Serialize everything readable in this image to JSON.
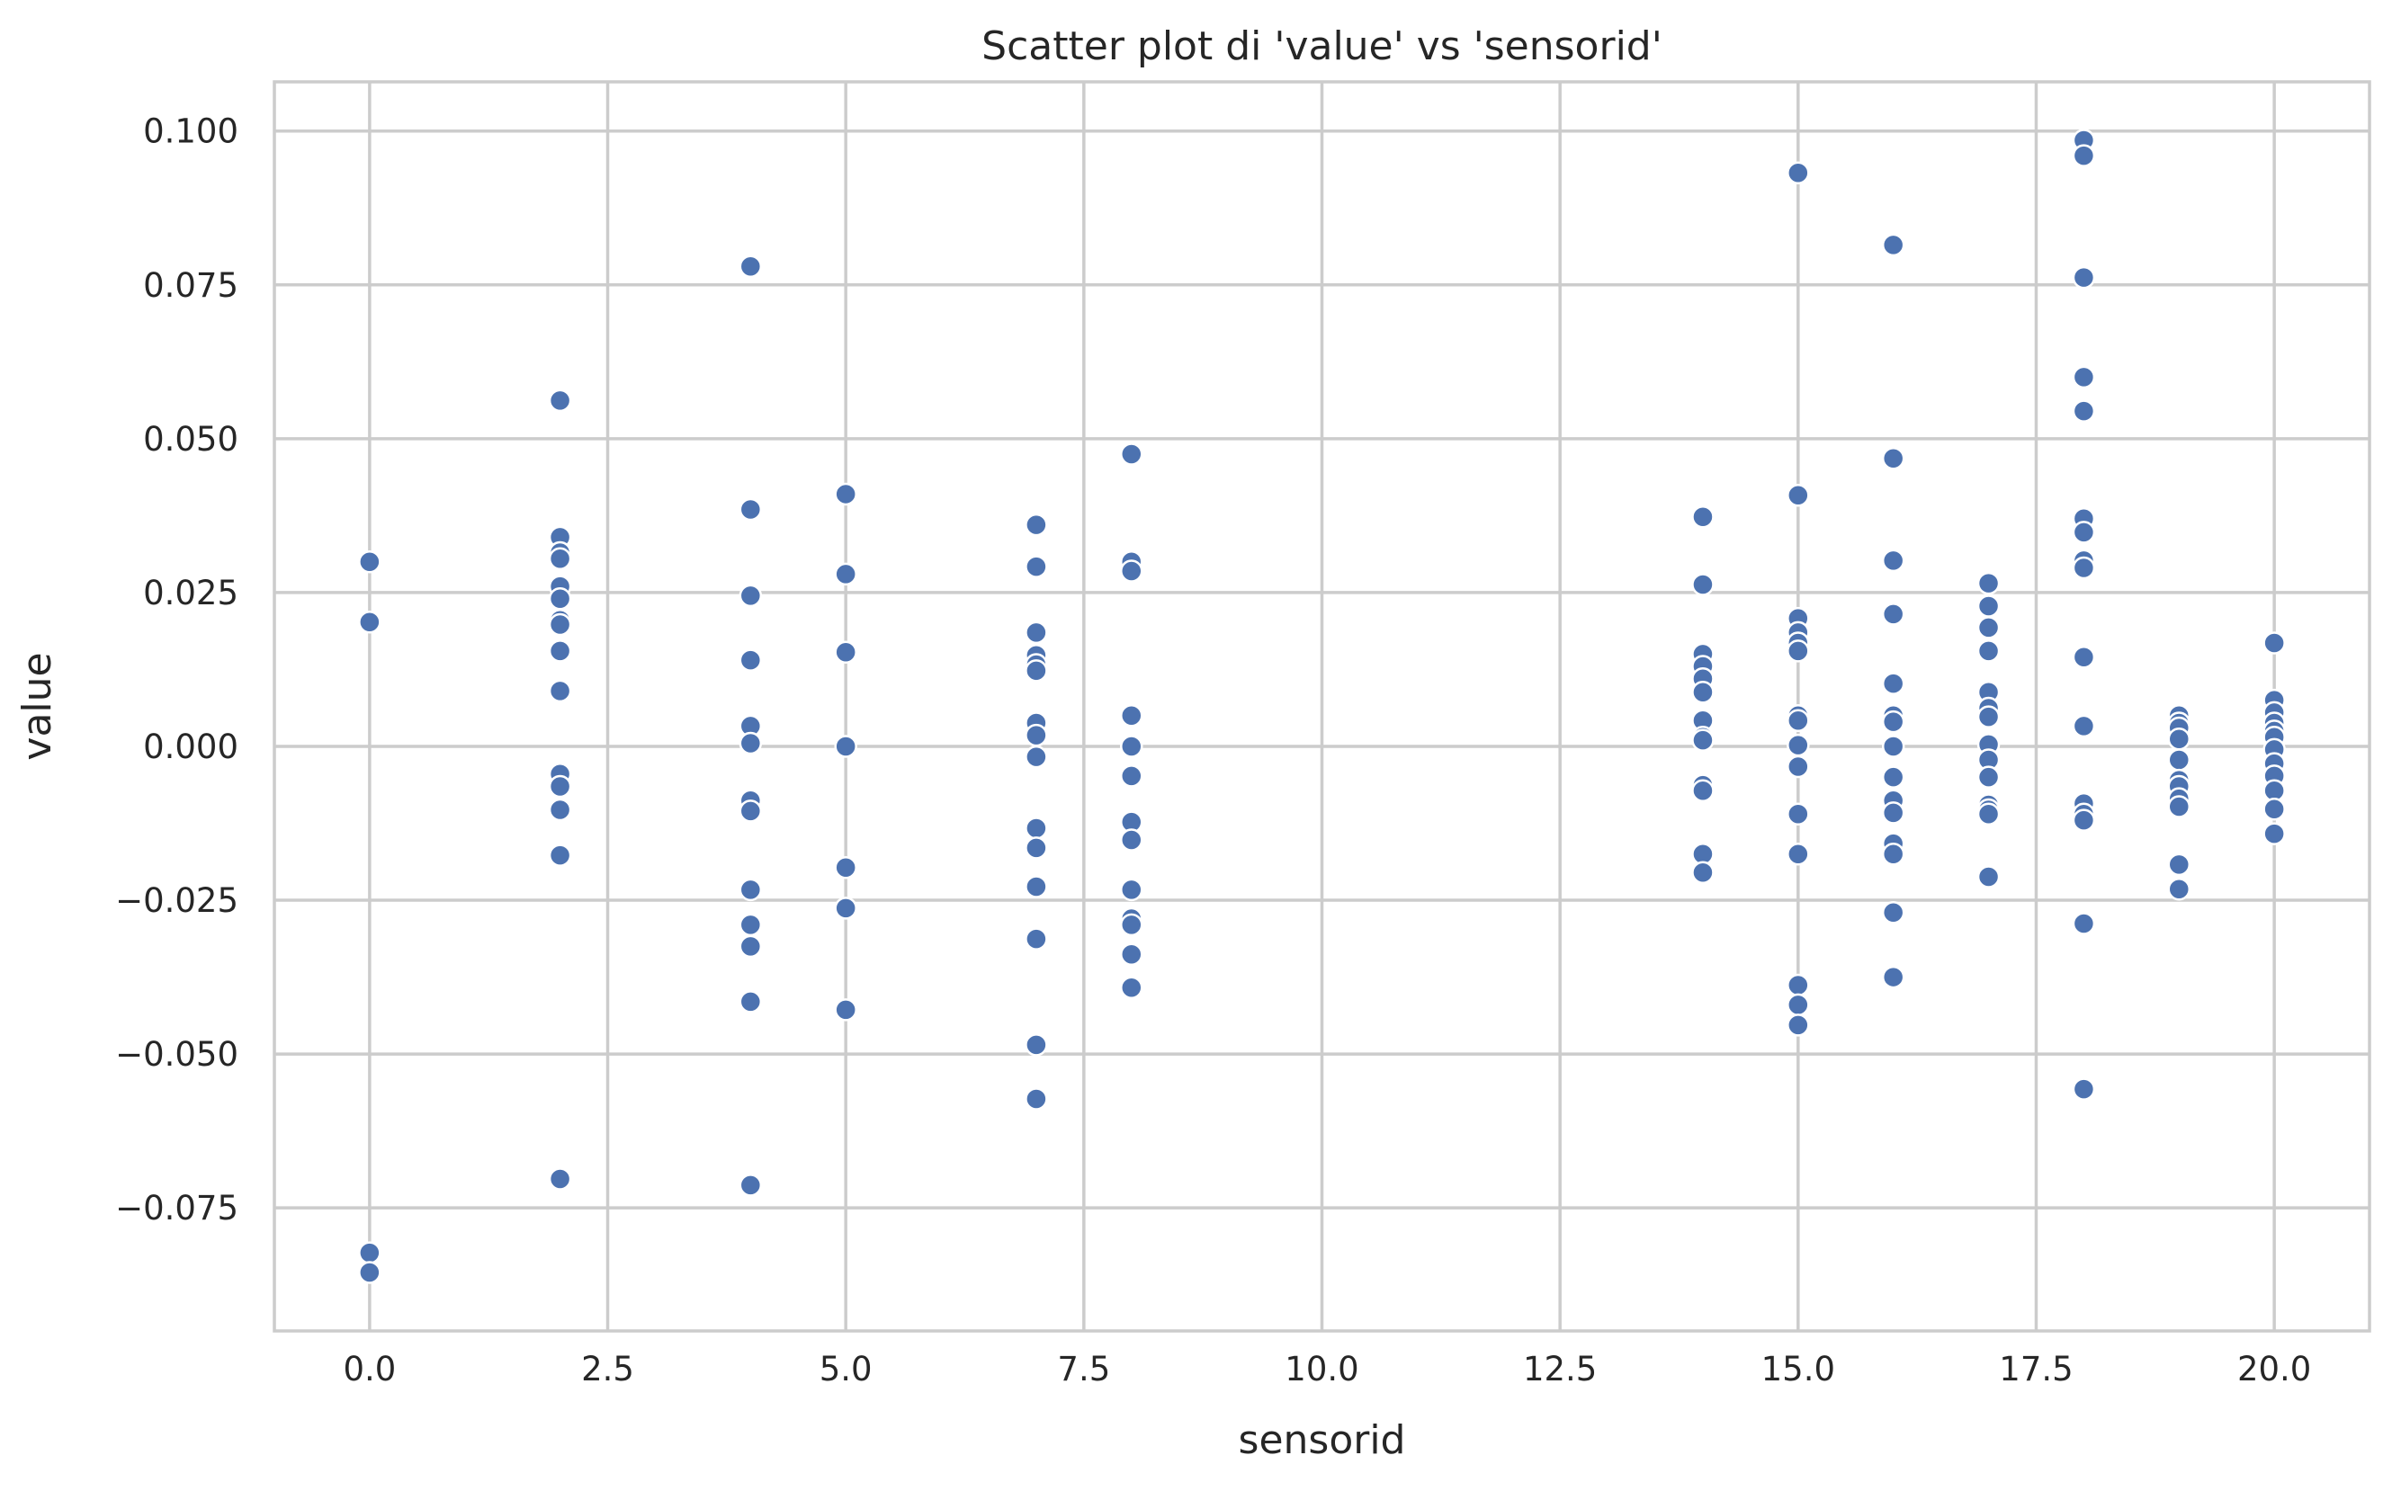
{
  "chart_data": {
    "type": "scatter",
    "title": "Scatter plot di 'value' vs 'sensorid'",
    "xlabel": "sensorid",
    "ylabel": "value",
    "xlim": [
      -1.0,
      21.0
    ],
    "ylim": [
      -0.095,
      0.108
    ],
    "xticks": [
      0.0,
      2.5,
      5.0,
      7.5,
      10.0,
      12.5,
      15.0,
      17.5,
      20.0
    ],
    "xtick_labels": [
      "0.0",
      "2.5",
      "5.0",
      "7.5",
      "10.0",
      "12.5",
      "15.0",
      "17.5",
      "20.0"
    ],
    "yticks": [
      -0.075,
      -0.05,
      -0.025,
      0.0,
      0.025,
      0.05,
      0.075,
      0.1
    ],
    "ytick_labels": [
      "−0.075",
      "−0.050",
      "−0.025",
      "0.000",
      "0.025",
      "0.050",
      "0.075",
      "0.100"
    ],
    "grid": true,
    "point_color": "#4c72b0",
    "series": [
      {
        "points": [
          [
            0,
            0.03
          ],
          [
            0,
            0.0202
          ],
          [
            0,
            -0.0823
          ],
          [
            0,
            -0.0855
          ],
          [
            2,
            0.0562
          ],
          [
            2,
            0.034
          ],
          [
            2,
            0.0315
          ],
          [
            2,
            0.0305
          ],
          [
            2,
            0.026
          ],
          [
            2,
            0.024
          ],
          [
            2,
            0.0205
          ],
          [
            2,
            0.0198
          ],
          [
            2,
            0.0155
          ],
          [
            2,
            0.009
          ],
          [
            2,
            -0.0045
          ],
          [
            2,
            -0.0065
          ],
          [
            2,
            -0.0103
          ],
          [
            2,
            -0.0177
          ],
          [
            2,
            -0.0703
          ],
          [
            4,
            0.078
          ],
          [
            4,
            0.0385
          ],
          [
            4,
            0.0245
          ],
          [
            4,
            0.014
          ],
          [
            4,
            0.0033
          ],
          [
            4,
            0.0005
          ],
          [
            4,
            -0.0088
          ],
          [
            4,
            -0.0105
          ],
          [
            4,
            -0.0233
          ],
          [
            4,
            -0.029
          ],
          [
            4,
            -0.0325
          ],
          [
            4,
            -0.0415
          ],
          [
            4,
            -0.0713
          ],
          [
            5,
            0.041
          ],
          [
            5,
            0.028
          ],
          [
            5,
            0.0153
          ],
          [
            5,
            0.0
          ],
          [
            5,
            -0.0197
          ],
          [
            5,
            -0.0263
          ],
          [
            5,
            -0.0428
          ],
          [
            7,
            0.036
          ],
          [
            7,
            0.0292
          ],
          [
            7,
            0.0185
          ],
          [
            7,
            0.0148
          ],
          [
            7,
            0.0133
          ],
          [
            7,
            0.0123
          ],
          [
            7,
            0.0038
          ],
          [
            7,
            0.0018
          ],
          [
            7,
            -0.0017
          ],
          [
            7,
            -0.0133
          ],
          [
            7,
            -0.0165
          ],
          [
            7,
            -0.0228
          ],
          [
            7,
            -0.0313
          ],
          [
            7,
            -0.0485
          ],
          [
            7,
            -0.0573
          ],
          [
            8,
            0.0475
          ],
          [
            8,
            0.03
          ],
          [
            8,
            0.0285
          ],
          [
            8,
            0.005
          ],
          [
            8,
            0.0
          ],
          [
            8,
            -0.0048
          ],
          [
            8,
            -0.0123
          ],
          [
            8,
            -0.0152
          ],
          [
            8,
            -0.0233
          ],
          [
            8,
            -0.028
          ],
          [
            8,
            -0.029
          ],
          [
            8,
            -0.0338
          ],
          [
            8,
            -0.0392
          ],
          [
            14,
            0.0373
          ],
          [
            14,
            0.0263
          ],
          [
            14,
            0.015
          ],
          [
            14,
            0.013
          ],
          [
            14,
            0.011
          ],
          [
            14,
            0.0088
          ],
          [
            14,
            0.0042
          ],
          [
            14,
            0.0015
          ],
          [
            14,
            0.001
          ],
          [
            14,
            -0.0063
          ],
          [
            14,
            -0.0072
          ],
          [
            14,
            -0.0175
          ],
          [
            14,
            -0.0205
          ],
          [
            15,
            0.0932
          ],
          [
            15,
            0.0408
          ],
          [
            15,
            0.0208
          ],
          [
            15,
            0.0185
          ],
          [
            15,
            0.0168
          ],
          [
            15,
            0.0155
          ],
          [
            15,
            0.005
          ],
          [
            15,
            0.0042
          ],
          [
            15,
            0.0002
          ],
          [
            15,
            -0.0033
          ],
          [
            15,
            -0.011
          ],
          [
            15,
            -0.0175
          ],
          [
            15,
            -0.0388
          ],
          [
            15,
            -0.042
          ],
          [
            15,
            -0.0453
          ],
          [
            16,
            0.0815
          ],
          [
            16,
            0.0468
          ],
          [
            16,
            0.0302
          ],
          [
            16,
            0.0215
          ],
          [
            16,
            0.0102
          ],
          [
            16,
            0.005
          ],
          [
            16,
            0.004
          ],
          [
            16,
            0.0
          ],
          [
            16,
            -0.005
          ],
          [
            16,
            -0.0088
          ],
          [
            16,
            -0.0108
          ],
          [
            16,
            -0.0158
          ],
          [
            16,
            -0.0175
          ],
          [
            16,
            -0.027
          ],
          [
            16,
            -0.0375
          ],
          [
            17,
            0.0265
          ],
          [
            17,
            0.0228
          ],
          [
            17,
            0.0193
          ],
          [
            17,
            0.0155
          ],
          [
            17,
            0.0088
          ],
          [
            17,
            0.0062
          ],
          [
            17,
            0.0048
          ],
          [
            17,
            0.0003
          ],
          [
            17,
            -0.0022
          ],
          [
            17,
            -0.005
          ],
          [
            17,
            -0.0095
          ],
          [
            17,
            -0.0103
          ],
          [
            17,
            -0.011
          ],
          [
            17,
            -0.0212
          ],
          [
            18,
            0.0985
          ],
          [
            18,
            0.096
          ],
          [
            18,
            0.0762
          ],
          [
            18,
            0.06
          ],
          [
            18,
            0.0545
          ],
          [
            18,
            0.037
          ],
          [
            18,
            0.0348
          ],
          [
            18,
            0.0302
          ],
          [
            18,
            0.029
          ],
          [
            18,
            0.0145
          ],
          [
            18,
            0.0033
          ],
          [
            18,
            -0.0093
          ],
          [
            18,
            -0.011
          ],
          [
            18,
            -0.012
          ],
          [
            18,
            -0.0288
          ],
          [
            18,
            -0.0557
          ],
          [
            19,
            0.005
          ],
          [
            19,
            0.0038
          ],
          [
            19,
            0.003
          ],
          [
            19,
            0.0012
          ],
          [
            19,
            -0.0022
          ],
          [
            19,
            -0.0055
          ],
          [
            19,
            -0.0065
          ],
          [
            19,
            -0.0085
          ],
          [
            19,
            -0.0098
          ],
          [
            19,
            -0.0192
          ],
          [
            19,
            -0.0232
          ],
          [
            20,
            0.0168
          ],
          [
            20,
            0.0075
          ],
          [
            20,
            0.0055
          ],
          [
            20,
            0.0038
          ],
          [
            20,
            0.0025
          ],
          [
            20,
            0.0015
          ],
          [
            20,
            -0.0005
          ],
          [
            20,
            -0.0028
          ],
          [
            20,
            -0.0048
          ],
          [
            20,
            -0.0072
          ],
          [
            20,
            -0.0102
          ],
          [
            20,
            -0.0142
          ]
        ]
      }
    ]
  }
}
